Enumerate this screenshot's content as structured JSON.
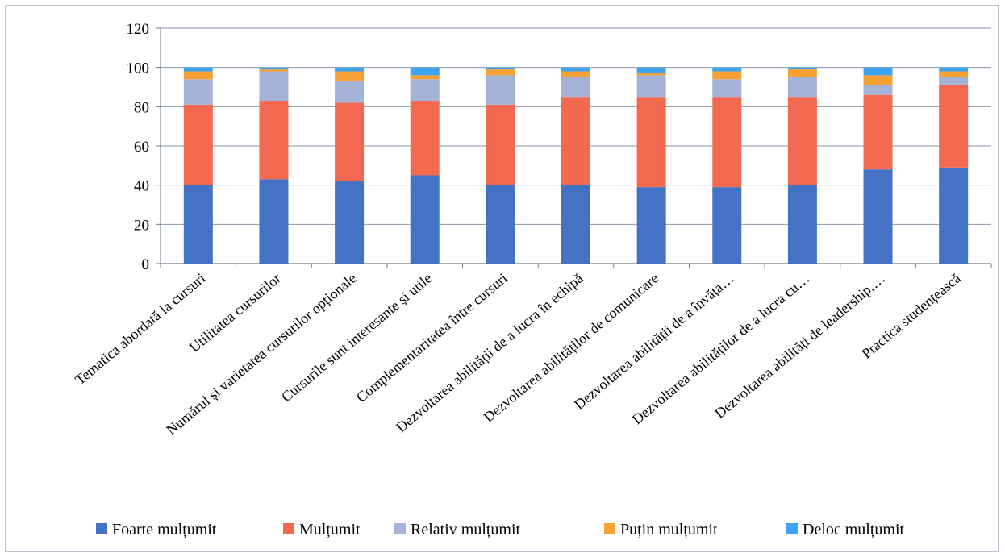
{
  "chart_data": {
    "type": "bar",
    "stacked": true,
    "title": "",
    "xlabel": "",
    "ylabel": "",
    "ylim": [
      0,
      120
    ],
    "yticks": [
      0,
      20,
      40,
      60,
      80,
      100,
      120
    ],
    "grid": true,
    "legend_position": "bottom",
    "categories": [
      "Tematica abordată la cursuri",
      "Utilitatea cursurilor",
      "Numărul și varietatea cursurilor opționale",
      "Cursurile sunt interesante și  utile",
      "Complementaritatea între cursuri",
      "Dezvoltarea abilității de a lucra în echipă",
      "Dezvoltarea abilităților de comunicare",
      "Dezvoltarea abilității de a învăța…",
      "Dezvoltarea abilităților de a lucra cu…",
      "Dezvoltarea  abilități de leadership,…",
      "Practica studențească"
    ],
    "series": [
      {
        "name": "Foarte mulțumit",
        "color": "#4472c4",
        "values": [
          40,
          43,
          42,
          45,
          40,
          40,
          39,
          39,
          40,
          48,
          49
        ]
      },
      {
        "name": "Mulțumit",
        "color": "#f36a50",
        "values": [
          41,
          40,
          40,
          38,
          41,
          45,
          46,
          46,
          45,
          38,
          42
        ]
      },
      {
        "name": "Relativ mulțumit",
        "color": "#a5b4d6",
        "values": [
          13,
          15,
          11,
          11,
          15,
          10,
          11,
          9,
          10,
          5,
          4
        ]
      },
      {
        "name": "Puțin mulțumit",
        "color": "#f7a033",
        "values": [
          4,
          1,
          5,
          2,
          3,
          3,
          1,
          4,
          4,
          5,
          3
        ]
      },
      {
        "name": "Deloc mulțumit",
        "color": "#3fa4f0",
        "values": [
          2,
          1,
          2,
          4,
          1,
          2,
          3,
          2,
          1,
          4,
          2
        ]
      }
    ]
  }
}
